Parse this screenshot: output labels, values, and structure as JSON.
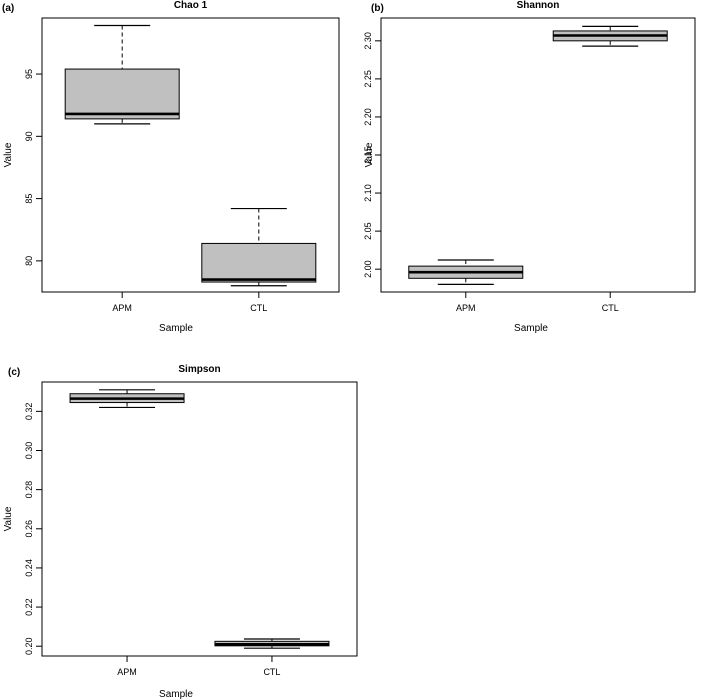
{
  "chart_data": [
    {
      "type": "box",
      "panel_label": "(a)",
      "title": "Chao 1",
      "xlabel": "Sample",
      "ylabel": "Value",
      "categories": [
        "APM",
        "CTL"
      ],
      "ylim": [
        77.5,
        99.5
      ],
      "yticks": [
        80,
        85,
        90,
        95
      ],
      "ytick_labels": [
        "80",
        "85",
        "90",
        "95"
      ],
      "boxes": [
        {
          "category": "APM",
          "min": 91.0,
          "q1": 91.4,
          "median": 91.8,
          "q3": 95.4,
          "max": 98.9
        },
        {
          "category": "CTL",
          "min": 78.0,
          "q1": 78.3,
          "median": 78.5,
          "q3": 81.4,
          "max": 84.2
        }
      ]
    },
    {
      "type": "box",
      "panel_label": "(b)",
      "title": "Shannon",
      "xlabel": "Sample",
      "ylabel": "Value",
      "categories": [
        "APM",
        "CTL"
      ],
      "ylim": [
        1.97,
        2.33
      ],
      "yticks": [
        2.0,
        2.05,
        2.1,
        2.15,
        2.2,
        2.25,
        2.3
      ],
      "ytick_labels": [
        "2.00",
        "2.05",
        "2.10",
        "2.15",
        "2.20",
        "2.25",
        "2.30"
      ],
      "boxes": [
        {
          "category": "APM",
          "min": 1.98,
          "q1": 1.988,
          "median": 1.996,
          "q3": 2.004,
          "max": 2.012
        },
        {
          "category": "CTL",
          "min": 2.293,
          "q1": 2.3,
          "median": 2.307,
          "q3": 2.313,
          "max": 2.319
        }
      ]
    },
    {
      "type": "box",
      "panel_label": "(c)",
      "title": "Simpson",
      "xlabel": "Sample",
      "ylabel": "Value",
      "categories": [
        "APM",
        "CTL"
      ],
      "ylim": [
        0.195,
        0.335
      ],
      "yticks": [
        0.2,
        0.22,
        0.24,
        0.26,
        0.28,
        0.3,
        0.32
      ],
      "ytick_labels": [
        "0.20",
        "0.22",
        "0.24",
        "0.26",
        "0.28",
        "0.30",
        "0.32"
      ],
      "boxes": [
        {
          "category": "APM",
          "min": 0.322,
          "q1": 0.3245,
          "median": 0.3265,
          "q3": 0.329,
          "max": 0.331
        },
        {
          "category": "CTL",
          "min": 0.199,
          "q1": 0.2002,
          "median": 0.201,
          "q3": 0.2025,
          "max": 0.2037
        }
      ]
    }
  ],
  "colors": {
    "box_fill": "#c0c0c0",
    "line": "#000000",
    "median": "#000000"
  }
}
